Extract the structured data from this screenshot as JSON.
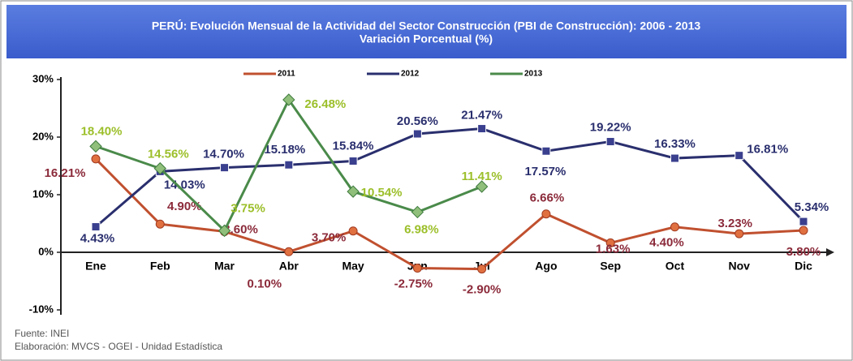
{
  "chart_data": {
    "type": "line",
    "title": "PERÚ: Evolución Mensual de la Actividad del Sector Construcción (PBI de Construcción): 2006 - 2013",
    "subtitle": "Variación Porcentual (%)",
    "categories": [
      "Ene",
      "Feb",
      "Mar",
      "Abr",
      "May",
      "Jun",
      "Jul",
      "Ago",
      "Sep",
      "Oct",
      "Nov",
      "Dic"
    ],
    "series": [
      {
        "name": "2011",
        "color": "#c0502f",
        "label_color": "#8b2a3a",
        "values": [
          16.21,
          4.9,
          3.6,
          0.1,
          3.7,
          -2.75,
          -2.9,
          6.66,
          1.63,
          4.4,
          3.23,
          3.8
        ],
        "value_labels": [
          "16.21%",
          "4.90%",
          "3.60%",
          "0.10%",
          "3.70%",
          "-2.75%",
          "-2.90%",
          "6.66%",
          "1.63%",
          "4.40%",
          "3.23%",
          "3.80%"
        ]
      },
      {
        "name": "2012",
        "color": "#2a2f6e",
        "label_color": "#2a2f6e",
        "values": [
          4.43,
          14.03,
          14.7,
          15.18,
          15.84,
          20.56,
          21.47,
          17.57,
          19.22,
          16.33,
          16.81,
          5.34
        ],
        "value_labels": [
          "4.43%",
          "14.03%",
          "14.70%",
          "15.18%",
          "15.84%",
          "20.56%",
          "21.47%",
          "17.57%",
          "19.22%",
          "16.33%",
          "16.81%",
          "5.34%"
        ]
      },
      {
        "name": "2013",
        "color": "#4a8a4a",
        "label_color": "#9cbf2a",
        "values": [
          18.4,
          14.56,
          3.75,
          26.48,
          10.54,
          6.98,
          11.41,
          null,
          null,
          null,
          null,
          null
        ],
        "value_labels": [
          "18.40%",
          "14.56%",
          "3.75%",
          "26.48%",
          "10.54%",
          "6.98%",
          "11.41%",
          null,
          null,
          null,
          null,
          null
        ]
      }
    ],
    "ylim": [
      -10,
      30
    ],
    "yticks": [
      {
        "value": -10,
        "label": "-10%"
      },
      {
        "value": 0,
        "label": "0%"
      },
      {
        "value": 10,
        "label": "10%"
      },
      {
        "value": 20,
        "label": "20%"
      },
      {
        "value": 30,
        "label": "30%"
      }
    ],
    "legend": "top",
    "source": "Fuente: INEI",
    "credit": "Elaboración: MVCS - OGEI - Unidad Estadística"
  }
}
